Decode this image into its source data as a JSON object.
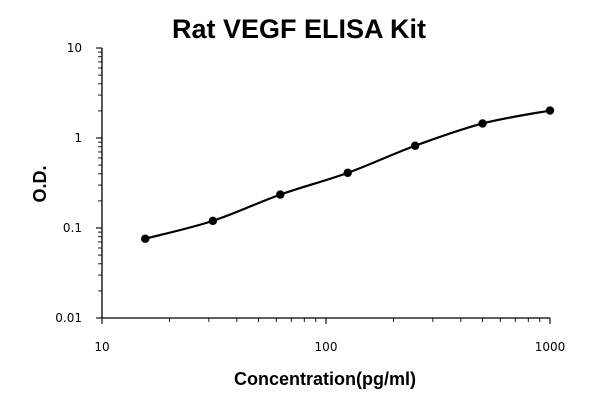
{
  "chart_data": {
    "type": "scatter",
    "title": "Rat VEGF ELISA Kit",
    "xlabel": "Concentration(pg/ml)",
    "ylabel": "O.D.",
    "x_scale": "log",
    "y_scale": "log",
    "xlim": [
      10,
      1000
    ],
    "ylim": [
      0.01,
      10
    ],
    "x_ticks": [
      "10",
      "100",
      "1000"
    ],
    "y_ticks": [
      "10",
      "1",
      "0.1",
      "0.01"
    ],
    "grid": false,
    "legend": "none",
    "series": [
      {
        "x": [
          15.6,
          31.25,
          62.5,
          125,
          250,
          500,
          1000
        ],
        "y": [
          0.076,
          0.12,
          0.235,
          0.41,
          0.82,
          1.45,
          2.02
        ],
        "trendline": true
      }
    ],
    "colors": {
      "marker": "#000000",
      "line": "#000000"
    }
  }
}
